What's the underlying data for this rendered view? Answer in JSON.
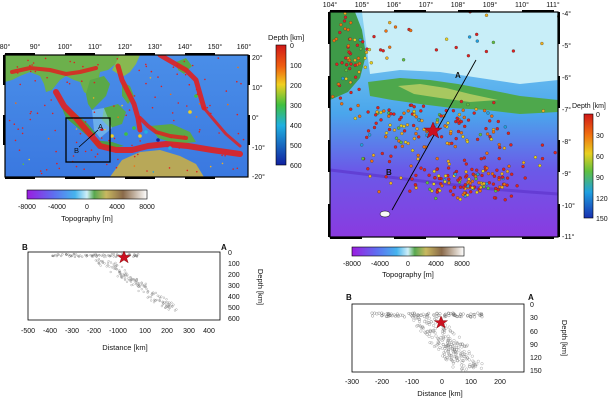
{
  "left_map": {
    "lon_ticks": [
      "80°",
      "90°",
      "100°",
      "110°",
      "120°",
      "130°",
      "140°",
      "150°",
      "160°"
    ],
    "lat_ticks": [
      "20°",
      "10°",
      "0°",
      "-10°",
      "-20°"
    ],
    "depth_title": "Depth [km]",
    "depth_ticks": [
      "0",
      "100",
      "200",
      "300",
      "400",
      "500",
      "600"
    ],
    "label_a": "A",
    "label_b": "B",
    "topo_ticks": [
      "-8000",
      "-4000",
      "0",
      "4000",
      "8000"
    ],
    "topo_title": "Topography [m]"
  },
  "left_section": {
    "end_b": "B",
    "end_a": "A",
    "x_ticks": [
      "-500",
      "-400",
      "-300",
      "-200",
      "-100",
      "0",
      "100",
      "200",
      "300",
      "400"
    ],
    "y_ticks": [
      "0",
      "100",
      "200",
      "300",
      "400",
      "500",
      "600"
    ],
    "xlabel": "Distance [km]",
    "ylabel": "Depth [km]"
  },
  "right_map": {
    "lon_ticks": [
      "104°",
      "105°",
      "106°",
      "107°",
      "108°",
      "109°",
      "110°",
      "111°"
    ],
    "lat_ticks": [
      "-4°",
      "-5°",
      "-6°",
      "-7°",
      "-8°",
      "-9°",
      "-10°",
      "-11°"
    ],
    "depth_title": "Depth [km]",
    "depth_ticks": [
      "0",
      "30",
      "60",
      "90",
      "120",
      "150"
    ],
    "label_a": "A",
    "label_b": "B",
    "topo_ticks": [
      "-8000",
      "-4000",
      "0",
      "4000",
      "8000"
    ],
    "topo_title": "Topography [m]"
  },
  "right_section": {
    "end_b": "B",
    "end_a": "A",
    "x_ticks": [
      "-300",
      "-200",
      "-100",
      "0",
      "100",
      "200"
    ],
    "y_ticks": [
      "0",
      "30",
      "60",
      "90",
      "120",
      "150"
    ],
    "xlabel": "Distance [km]",
    "ylabel": "Depth [km]"
  },
  "colors": {
    "deep_ocean": "#7a2ee0",
    "ocean": "#3c84e8",
    "shelf": "#8fd6f2",
    "lowland": "#2ea860",
    "upland": "#a8c85a",
    "quake_shallow": "#e02020",
    "epicenter_star": "#cc1020"
  }
}
